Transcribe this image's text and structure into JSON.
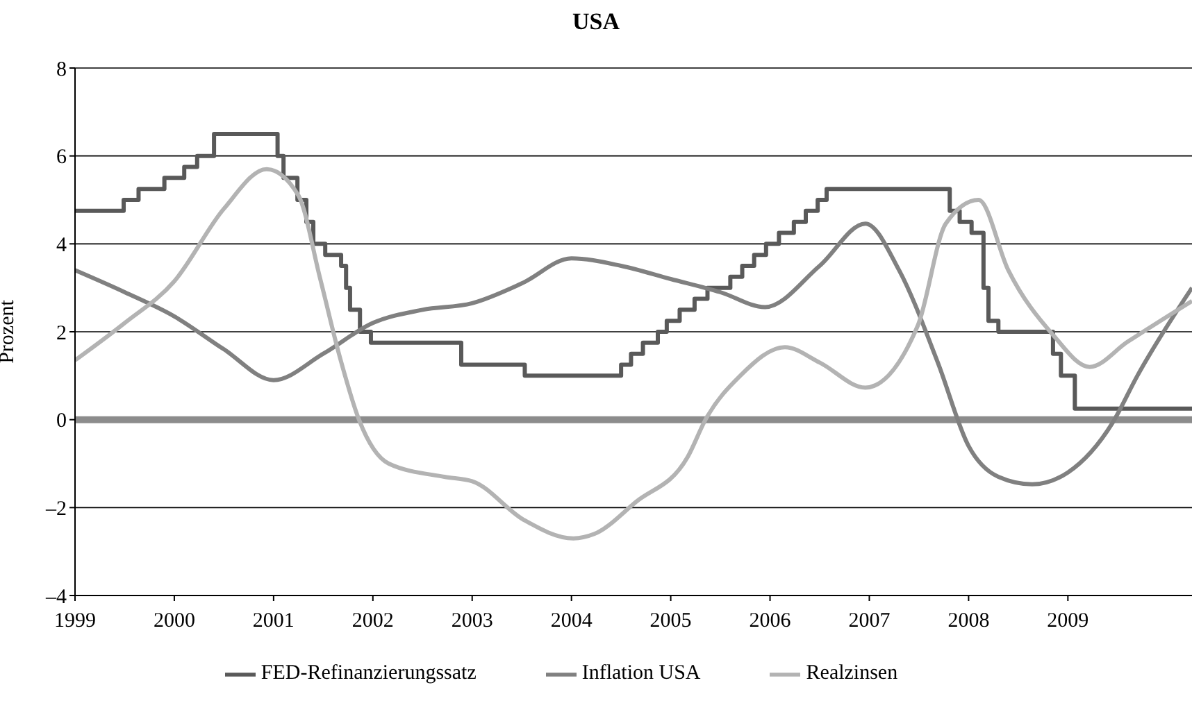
{
  "chart_data": {
    "type": "line",
    "title": "USA",
    "ylabel": "Prozent",
    "xlim": [
      1999,
      2010.25
    ],
    "xticks": [
      1999,
      2000,
      2001,
      2002,
      2003,
      2004,
      2005,
      2006,
      2007,
      2008,
      2009
    ],
    "ylim": [
      -4,
      8
    ],
    "yticks": [
      {
        "value": -4,
        "label": "–4"
      },
      {
        "value": -2,
        "label": "–2"
      },
      0,
      2,
      4,
      6,
      8
    ],
    "grid": "y",
    "legend": "bottom",
    "line_style": "solid",
    "marker": "none",
    "ref_lines": [
      {
        "axis": "y",
        "value": 0,
        "color": "#8c8c8c"
      }
    ],
    "series": [
      {
        "name": "FED-Refinanzierungssatz",
        "type": "step",
        "color": "#595959",
        "x": [
          1999,
          1999.49,
          1999.64,
          1999.9,
          2000.1,
          2000.23,
          2000.4,
          2001.04,
          2001.1,
          2001.24,
          2001.33,
          2001.4,
          2001.52,
          2001.68,
          2001.73,
          2001.77,
          2001.87,
          2001.98,
          2002.89,
          2003.53,
          2004.5,
          2004.6,
          2004.72,
          2004.87,
          2004.96,
          2005.09,
          2005.24,
          2005.37,
          2005.6,
          2005.72,
          2005.84,
          2005.96,
          2006.09,
          2006.24,
          2006.36,
          2006.48,
          2006.57,
          2007.81,
          2007.91,
          2008.03,
          2008.15,
          2008.2,
          2008.3,
          2008.4,
          2008.85,
          2008.93,
          2009.07,
          2010.25
        ],
        "values": [
          4.75,
          5,
          5.25,
          5.5,
          5.75,
          6,
          6.5,
          6,
          5.5,
          5,
          4.5,
          4,
          3.75,
          3.5,
          3,
          2.5,
          2,
          1.75,
          1.25,
          1,
          1.25,
          1.5,
          1.75,
          2,
          2.25,
          2.5,
          2.75,
          3,
          3.25,
          3.5,
          3.75,
          4,
          4.25,
          4.5,
          4.75,
          5,
          5.25,
          4.75,
          4.5,
          4.25,
          3,
          2.25,
          2,
          2,
          1.5,
          1,
          0.25,
          0.25
        ]
      },
      {
        "name": "Inflation USA",
        "type": "line",
        "color": "#808080",
        "x": [
          1999,
          1999.5,
          2000,
          2000.5,
          2001,
          2001.5,
          2002,
          2002.5,
          2003,
          2003.5,
          2004,
          2004.5,
          2005,
          2005.5,
          2005.95,
          2006.5,
          2006.96,
          2007.3,
          2007.69,
          2008,
          2008.3,
          2008.64,
          2009,
          2009.45,
          2009.7,
          2010.25
        ],
        "values": [
          3.4,
          2.9,
          2.35,
          1.6,
          0.9,
          1.5,
          2.2,
          2.5,
          2.65,
          3.1,
          3.67,
          3.5,
          3.2,
          2.9,
          2.56,
          3.5,
          4.46,
          3.4,
          1.3,
          -0.6,
          -1.3,
          -1.47,
          -1.2,
          -0.07,
          1.0,
          3.0
        ]
      },
      {
        "name": "Realzinsen",
        "type": "line",
        "color": "#b3b3b3",
        "x": [
          1999,
          1999.5,
          2000,
          2000.5,
          2000.93,
          2001.25,
          2001.47,
          2001.67,
          2001.86,
          2002.16,
          2002.72,
          2003,
          2003.52,
          2004.02,
          2004.23,
          2004.65,
          2005.17,
          2005.35,
          2005.7,
          2006.15,
          2006.5,
          2006.96,
          2007.49,
          2007.77,
          2008.1,
          2008.4,
          2008.85,
          2009.22,
          2009.6,
          2010.25
        ],
        "values": [
          1.35,
          2.2,
          3.15,
          4.8,
          5.7,
          5.1,
          3.2,
          1.4,
          0,
          -1,
          -1.3,
          -1.4,
          -2.28,
          -2.7,
          -2.6,
          -1.87,
          -0.85,
          0,
          1.0,
          1.65,
          1.3,
          0.73,
          2.15,
          4.46,
          5.0,
          3.4,
          1.93,
          1.2,
          1.77,
          2.7
        ]
      }
    ]
  }
}
